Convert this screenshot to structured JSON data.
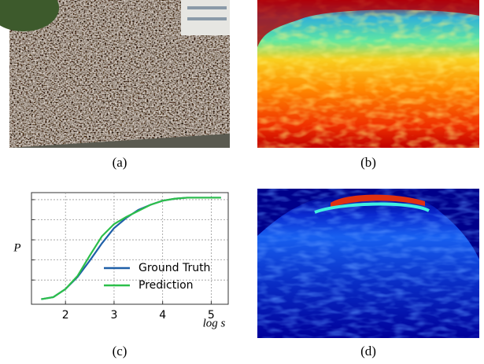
{
  "captions": [
    "(a)",
    "(b)",
    "(c)",
    "(d)"
  ],
  "chart_data": {
    "type": "line",
    "xlabel": "log s",
    "ylabel": "P",
    "x": [
      1.5,
      1.75,
      2,
      2.25,
      2.5,
      2.75,
      3,
      3.25,
      3.5,
      3.75,
      4,
      4.25,
      4.5,
      4.75,
      5,
      5.2
    ],
    "series": [
      {
        "name": "Ground Truth",
        "color": "#1f5fa8",
        "values": [
          0,
          0.02,
          0.1,
          0.22,
          0.38,
          0.55,
          0.7,
          0.8,
          0.88,
          0.93,
          0.97,
          0.99,
          1.0,
          1.0,
          1.0,
          1.0
        ]
      },
      {
        "name": "Prediction",
        "color": "#2cbf4a",
        "values": [
          0,
          0.02,
          0.1,
          0.23,
          0.43,
          0.62,
          0.74,
          0.81,
          0.87,
          0.93,
          0.97,
          0.99,
          1.0,
          1.0,
          1.0,
          1.0
        ]
      }
    ],
    "xlim": [
      1.3,
      5.35
    ],
    "ylim": [
      -0.05,
      1.05
    ],
    "xticks": [
      2,
      3,
      4,
      5
    ],
    "grid": true
  }
}
